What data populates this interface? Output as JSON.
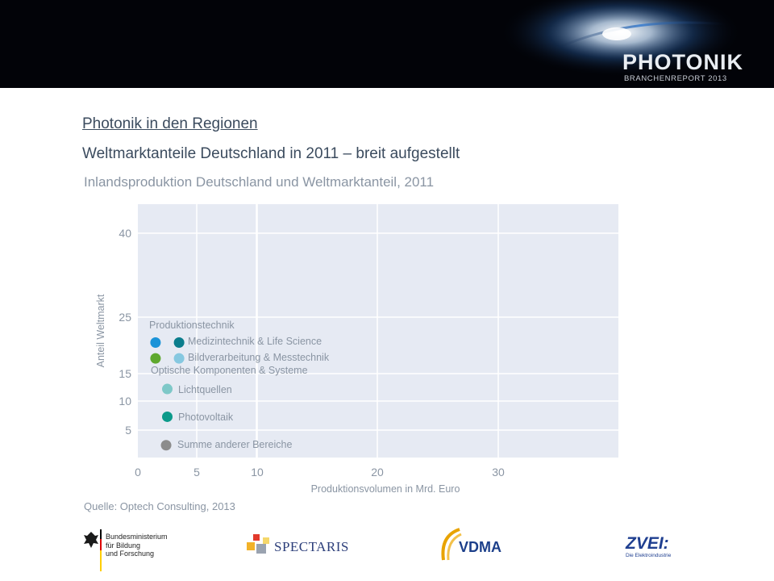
{
  "header": {
    "brand_title": "PHOTONIK",
    "brand_subtitle": "BRANCHENREPORT 2013"
  },
  "slide": {
    "section": "Photonik in den Regionen",
    "headline": "Weltmarktanteile Deutschland in 2011 – breit aufgestellt",
    "chart_title": "Inlandsproduktion Deutschland und Weltmarktanteil, 2011",
    "source": "Quelle: Optech Consulting, 2013"
  },
  "chart_data": {
    "type": "scatter",
    "title": "Inlandsproduktion Deutschland und Weltmarktanteil, 2011",
    "xlabel": "Produktionsvolumen in Mrd. Euro",
    "ylabel": "Anteil Weltmarkt",
    "xlim": [
      0,
      40
    ],
    "ylim": [
      0,
      45
    ],
    "x_ticks": [
      0,
      5,
      10,
      20,
      30
    ],
    "y_ticks": [
      5,
      10,
      15,
      25,
      40
    ],
    "grid": true,
    "legend_position": "inside-left",
    "legend": [
      {
        "name": "Produktionstechnik",
        "color": null
      },
      {
        "name": "Medizintechnik & Life Science",
        "color": "#0b7d8c"
      },
      {
        "name": "Bildverarbeitung & Messtechnik",
        "color": "#86c8e0"
      },
      {
        "name": "Optische Komponenten & Systeme",
        "color": null
      },
      {
        "name": "Lichtquellen",
        "color": "#7ec8c8"
      },
      {
        "name": "Photovoltaik",
        "color": "#0b9a8a"
      },
      {
        "name": "Summe anderer Bereiche",
        "color": "#8c8c8c"
      }
    ],
    "points": [
      {
        "x": 1.5,
        "y": 20.5,
        "color": "#1a93d8"
      },
      {
        "x": 3.5,
        "y": 20.5,
        "color": "#0b7d8c"
      },
      {
        "x": 1.5,
        "y": 17.7,
        "color": "#5ea82e"
      },
      {
        "x": 3.5,
        "y": 17.7,
        "color": "#86c8e0"
      },
      {
        "x": 2.5,
        "y": 12.2,
        "color": "#7ec8c8"
      },
      {
        "x": 2.5,
        "y": 7.3,
        "color": "#0b9a8a"
      },
      {
        "x": 2.4,
        "y": 2.4,
        "color": "#8c8c8c"
      }
    ],
    "colors": {
      "plot_bg": "#e6eaf3",
      "grid": "#ffffff",
      "axis_text": "#8a95a3"
    }
  },
  "logos": {
    "bmbf": [
      "Bundesministerium",
      "für Bildung",
      "und Forschung"
    ],
    "spectaris": "SPECTARIS",
    "vdma": "VDMA",
    "zvei": "ZVEI:",
    "zvei_sub": "Die Elektroindustrie"
  }
}
